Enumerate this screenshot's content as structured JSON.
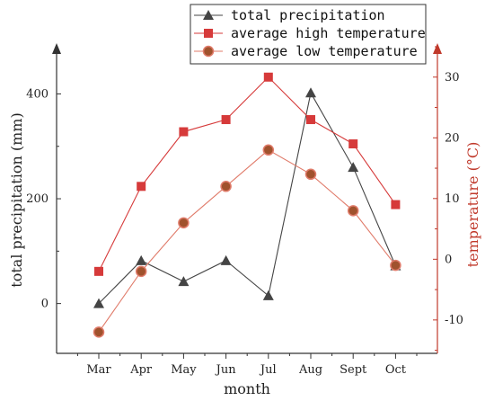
{
  "chart_data": {
    "type": "line",
    "categories": [
      "Mar",
      "Apr",
      "May",
      "Jun",
      "Jul",
      "Aug",
      "Sept",
      "Oct"
    ],
    "xlabel": "month",
    "ylabel_left": "total precipitation (mm)",
    "ylabel_right": "temperature (°C)",
    "ylim_left": [
      -95,
      490
    ],
    "ylim_right": [
      -15.5,
      35
    ],
    "yticks_left": [
      0,
      200,
      400
    ],
    "yticks_right": [
      -10,
      0,
      10,
      20,
      30
    ],
    "grid": false,
    "legend_position": "top-center",
    "series": [
      {
        "name": "total precipitation",
        "axis": "left",
        "marker": "triangle",
        "color": "#444444",
        "values": [
          0,
          82,
          42,
          82,
          15,
          402,
          260,
          72
        ]
      },
      {
        "name": "average high temperature",
        "axis": "right",
        "marker": "square",
        "color": "#d63a3a",
        "values": [
          -2,
          12,
          21,
          23,
          30,
          23,
          19,
          9
        ]
      },
      {
        "name": "average low temperature",
        "axis": "right",
        "marker": "circle",
        "color": "#e07b6a",
        "values": [
          -12,
          -2,
          6,
          12,
          18,
          14,
          8,
          -1
        ]
      }
    ]
  },
  "colors": {
    "left_axis": "#333333",
    "right_axis": "#c0392b",
    "marker_square": "#d63a3a",
    "marker_circle": "#a0522d"
  }
}
